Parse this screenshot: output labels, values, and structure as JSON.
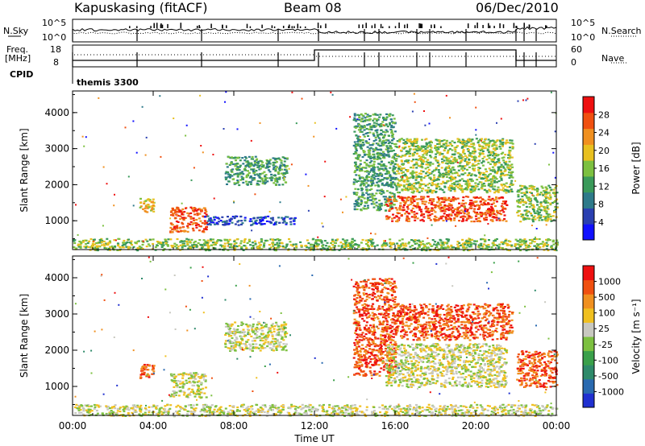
{
  "header": {
    "station": "Kapuskasing (fitACF)",
    "beam": "Beam 08",
    "date": "06/Dec/2010"
  },
  "top_panels": {
    "nsky_label": "N.Sky",
    "nsearch_label": "N.Search",
    "nsky_ticks": [
      "10^5",
      "10^0"
    ],
    "nsearch_ticks": [
      "10^5",
      "10^0"
    ],
    "freq_label": "Freq.",
    "freq_unit": "[MHz]",
    "freq_ticks": [
      "18",
      "8"
    ],
    "nave_label": "Nave",
    "nave_ticks": [
      "60",
      "0"
    ],
    "cpid_label": "CPID",
    "cpid_value": "themis 3300"
  },
  "chart_data": [
    {
      "type": "heatmap",
      "panel": "power",
      "ylabel": "Slant Range [km]",
      "xlabel": "",
      "x_ticks": [
        "00:00",
        "04:00",
        "08:00",
        "12:00",
        "16:00",
        "20:00",
        "00:00"
      ],
      "y_ticks": [
        1000,
        2000,
        3000,
        4000
      ],
      "xlim": [
        0,
        24
      ],
      "ylim": [
        200,
        4600
      ],
      "colorbar": {
        "label": "Power [dB]",
        "ticks": [
          4,
          8,
          12,
          16,
          20,
          24,
          28
        ],
        "colors": [
          "#1010ff",
          "#2a3fb0",
          "#2e7a8a",
          "#3a9a5a",
          "#7cc040",
          "#e8c020",
          "#f09020",
          "#f05010",
          "#ee1010"
        ]
      },
      "regions": [
        {
          "t0": 0.0,
          "t1": 24.0,
          "r0": 200,
          "r1": 520,
          "level": 4
        },
        {
          "t0": 3.3,
          "t1": 4.0,
          "r0": 1250,
          "r1": 1650,
          "level": 5
        },
        {
          "t0": 4.8,
          "t1": 6.6,
          "r0": 700,
          "r1": 1400,
          "level": 7
        },
        {
          "t0": 7.5,
          "t1": 10.6,
          "r0": 2000,
          "r1": 2800,
          "level": 3
        },
        {
          "t0": 6.5,
          "t1": 11.0,
          "r0": 900,
          "r1": 1150,
          "level": 1
        },
        {
          "t0": 13.9,
          "t1": 16.0,
          "r0": 1300,
          "r1": 4000,
          "level": 3
        },
        {
          "t0": 16.0,
          "t1": 21.8,
          "r0": 1800,
          "r1": 3300,
          "level": 4
        },
        {
          "t0": 15.5,
          "t1": 21.5,
          "r0": 1000,
          "r1": 1700,
          "level": 7
        },
        {
          "t0": 22.0,
          "t1": 24.0,
          "r0": 1000,
          "r1": 2000,
          "level": 4
        }
      ]
    },
    {
      "type": "heatmap",
      "panel": "velocity",
      "ylabel": "Slant Range [km]",
      "xlabel": "Time UT",
      "x_ticks": [
        "00:00",
        "04:00",
        "08:00",
        "12:00",
        "16:00",
        "20:00",
        "00:00"
      ],
      "y_ticks": [
        1000,
        2000,
        3000,
        4000
      ],
      "xlim": [
        0,
        24
      ],
      "ylim": [
        200,
        4600
      ],
      "colorbar": {
        "label": "Velocity [m s⁻¹]",
        "ticks": [
          "1000",
          "500",
          "100",
          "25",
          "-25",
          "-100",
          "-500",
          "-1000"
        ],
        "colors": [
          "#2030d0",
          "#2a6ab0",
          "#2e8a6a",
          "#3aa04a",
          "#7cc040",
          "#c8c8c0",
          "#f0c020",
          "#f09020",
          "#f05010",
          "#ee1010"
        ]
      },
      "regions": [
        {
          "t0": 0.0,
          "t1": 24.0,
          "r0": 200,
          "r1": 520,
          "level": 5
        },
        {
          "t0": 3.3,
          "t1": 4.0,
          "r0": 1250,
          "r1": 1650,
          "level": 8
        },
        {
          "t0": 4.8,
          "t1": 6.6,
          "r0": 700,
          "r1": 1400,
          "level": 5
        },
        {
          "t0": 7.5,
          "t1": 10.6,
          "r0": 2000,
          "r1": 2800,
          "level": 5
        },
        {
          "t0": 13.9,
          "t1": 16.0,
          "r0": 1300,
          "r1": 4000,
          "level": 8
        },
        {
          "t0": 16.0,
          "t1": 21.8,
          "r0": 2300,
          "r1": 3300,
          "level": 8
        },
        {
          "t0": 15.5,
          "t1": 21.5,
          "r0": 1000,
          "r1": 2200,
          "level": 5
        },
        {
          "t0": 22.0,
          "t1": 24.0,
          "r0": 1000,
          "r1": 2000,
          "level": 8
        }
      ]
    }
  ]
}
